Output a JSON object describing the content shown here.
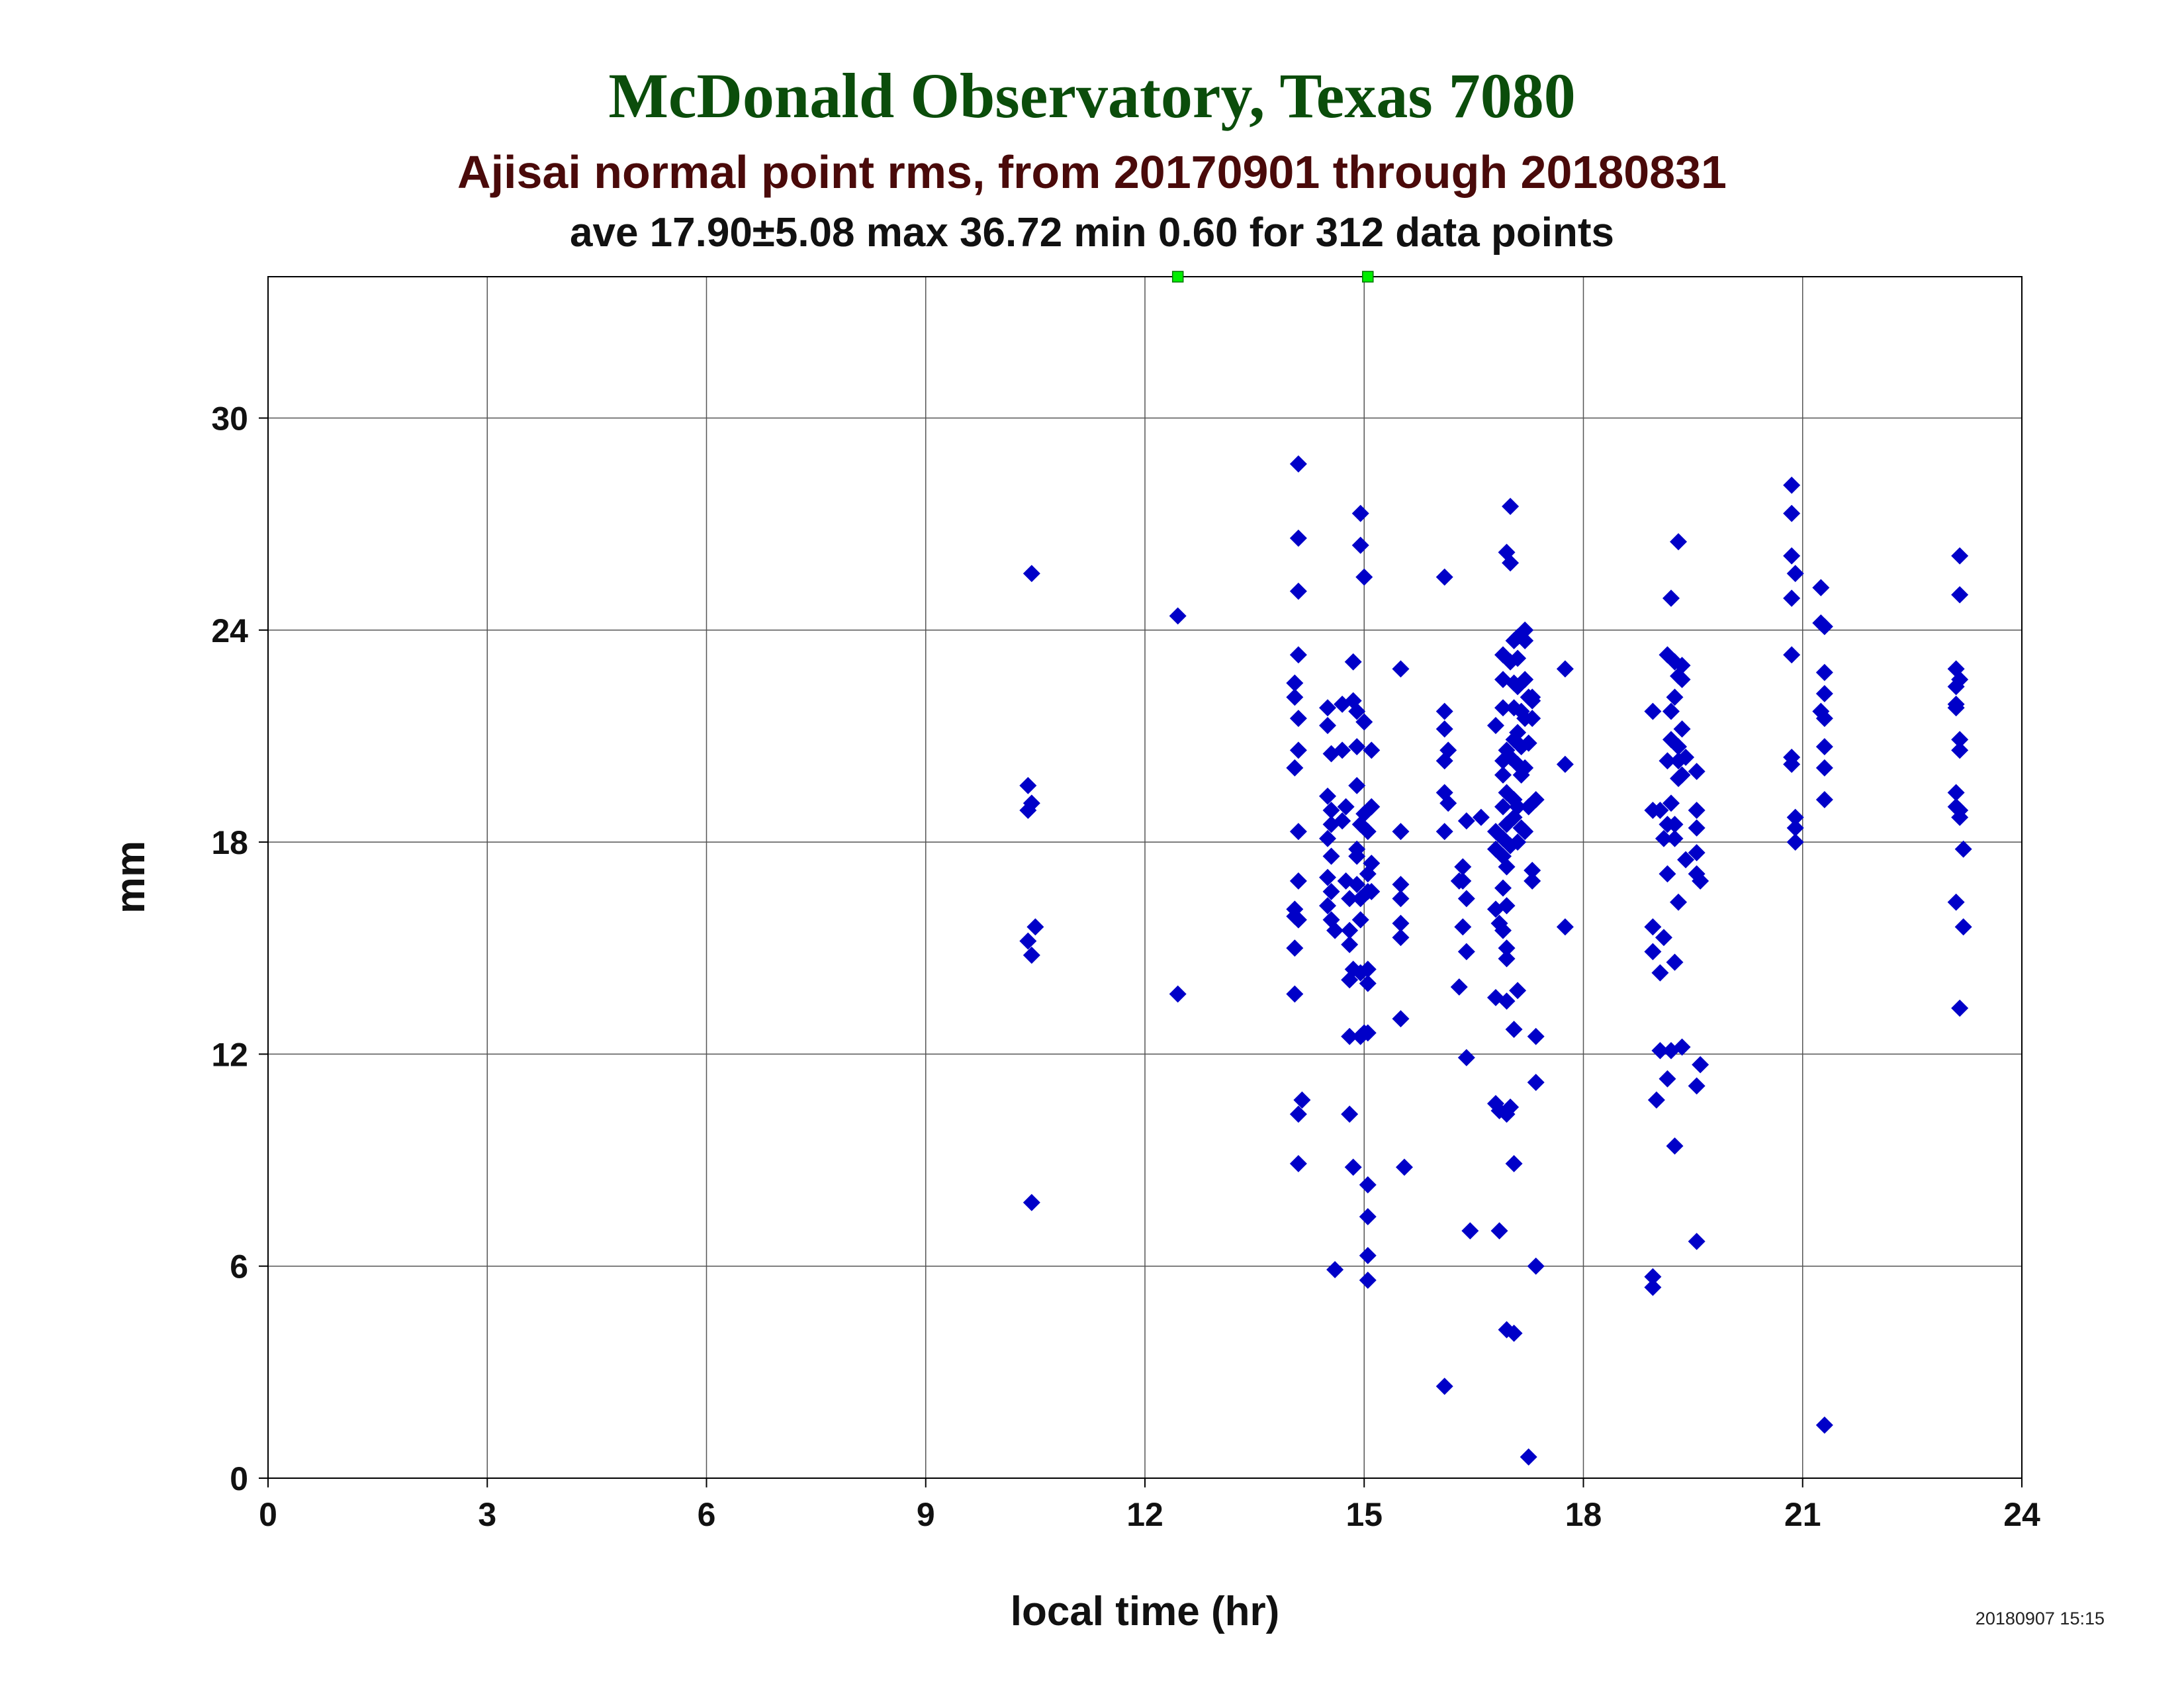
{
  "header": {
    "title": "McDonald Observatory, Texas 7080",
    "subtitle": "Ajisai normal point rms, from 20170901 through 20180831",
    "stats": "ave 17.90±5.08 max 36.72 min 0.60 for 312 data points"
  },
  "footer": {
    "timestamp": "20180907 15:15"
  },
  "colors": {
    "points": "#0000c8",
    "offscale_markers": "#00ee00",
    "grid": "#555555"
  },
  "chart_data": {
    "type": "scatter",
    "xlabel": "local time (hr)",
    "ylabel": "mm",
    "xlim": [
      0,
      24
    ],
    "ylim": [
      0,
      34
    ],
    "xticks": [
      0,
      3,
      6,
      9,
      12,
      15,
      18,
      21,
      24
    ],
    "yticks": [
      0,
      6,
      12,
      18,
      24,
      30
    ],
    "grid": true,
    "offscale_markers_x": [
      12.45,
      15.05
    ],
    "series": [
      {
        "points": [
          [
            10.4,
            19.6
          ],
          [
            10.4,
            18.9
          ],
          [
            10.45,
            19.1
          ],
          [
            10.45,
            25.6
          ],
          [
            10.5,
            15.6
          ],
          [
            10.4,
            15.2
          ],
          [
            10.45,
            14.8
          ],
          [
            10.45,
            7.8
          ],
          [
            12.45,
            24.4
          ],
          [
            12.45,
            13.7
          ],
          [
            14.1,
            28.7
          ],
          [
            14.1,
            26.6
          ],
          [
            14.1,
            25.1
          ],
          [
            14.1,
            23.3
          ],
          [
            14.05,
            22.5
          ],
          [
            14.05,
            22.1
          ],
          [
            14.1,
            21.5
          ],
          [
            14.1,
            20.6
          ],
          [
            14.05,
            20.1
          ],
          [
            14.1,
            18.3
          ],
          [
            14.1,
            16.9
          ],
          [
            14.05,
            16.1
          ],
          [
            14.1,
            15.8
          ],
          [
            14.05,
            15.9
          ],
          [
            14.05,
            15.0
          ],
          [
            14.05,
            13.7
          ],
          [
            14.15,
            10.7
          ],
          [
            14.1,
            10.3
          ],
          [
            14.1,
            8.9
          ],
          [
            14.5,
            21.8
          ],
          [
            14.5,
            21.3
          ],
          [
            14.55,
            20.5
          ],
          [
            14.5,
            19.3
          ],
          [
            14.55,
            18.9
          ],
          [
            14.55,
            18.5
          ],
          [
            14.5,
            18.1
          ],
          [
            14.55,
            17.6
          ],
          [
            14.5,
            17.0
          ],
          [
            14.55,
            16.6
          ],
          [
            14.5,
            16.2
          ],
          [
            14.55,
            15.8
          ],
          [
            14.6,
            15.5
          ],
          [
            14.6,
            5.9
          ],
          [
            14.7,
            21.9
          ],
          [
            14.7,
            20.6
          ],
          [
            14.75,
            19.0
          ],
          [
            14.7,
            18.6
          ],
          [
            14.75,
            16.9
          ],
          [
            14.8,
            16.4
          ],
          [
            14.8,
            15.5
          ],
          [
            14.8,
            15.1
          ],
          [
            14.85,
            14.4
          ],
          [
            14.8,
            14.1
          ],
          [
            14.8,
            12.5
          ],
          [
            14.8,
            10.3
          ],
          [
            14.85,
            8.8
          ],
          [
            14.85,
            23.1
          ],
          [
            14.85,
            22.0
          ],
          [
            14.9,
            20.7
          ],
          [
            14.9,
            19.6
          ],
          [
            14.9,
            17.6
          ],
          [
            14.9,
            16.8
          ],
          [
            14.95,
            16.4
          ],
          [
            14.95,
            27.3
          ],
          [
            14.95,
            26.4
          ],
          [
            14.9,
            21.7
          ],
          [
            14.95,
            18.5
          ],
          [
            14.9,
            17.8
          ],
          [
            14.95,
            15.8
          ],
          [
            14.95,
            14.3
          ],
          [
            15.0,
            12.6
          ],
          [
            14.95,
            12.5
          ],
          [
            15.0,
            25.5
          ],
          [
            15.0,
            21.4
          ],
          [
            15.0,
            18.8
          ],
          [
            15.05,
            18.3
          ],
          [
            15.05,
            17.1
          ],
          [
            15.05,
            16.6
          ],
          [
            15.05,
            14.4
          ],
          [
            15.05,
            14.0
          ],
          [
            15.05,
            12.6
          ],
          [
            15.05,
            8.3
          ],
          [
            15.05,
            7.4
          ],
          [
            15.05,
            6.3
          ],
          [
            15.05,
            5.6
          ],
          [
            15.1,
            20.6
          ],
          [
            15.1,
            19.0
          ],
          [
            15.1,
            17.4
          ],
          [
            15.1,
            16.6
          ],
          [
            15.5,
            22.9
          ],
          [
            15.5,
            18.3
          ],
          [
            15.5,
            16.8
          ],
          [
            15.5,
            16.4
          ],
          [
            15.5,
            15.7
          ],
          [
            15.5,
            15.3
          ],
          [
            15.5,
            13.0
          ],
          [
            15.55,
            8.8
          ],
          [
            16.1,
            25.5
          ],
          [
            16.1,
            21.7
          ],
          [
            16.1,
            21.2
          ],
          [
            16.15,
            20.6
          ],
          [
            16.1,
            20.3
          ],
          [
            16.1,
            19.4
          ],
          [
            16.15,
            19.1
          ],
          [
            16.1,
            18.3
          ],
          [
            16.1,
            2.6
          ],
          [
            16.3,
            16.9
          ],
          [
            16.35,
            17.3
          ],
          [
            16.35,
            16.9
          ],
          [
            16.4,
            16.4
          ],
          [
            16.35,
            15.6
          ],
          [
            16.4,
            14.9
          ],
          [
            16.3,
            13.9
          ],
          [
            16.4,
            11.9
          ],
          [
            16.45,
            7.0
          ],
          [
            16.4,
            18.6
          ],
          [
            16.6,
            18.7
          ],
          [
            16.8,
            21.3
          ],
          [
            16.8,
            18.3
          ],
          [
            16.8,
            17.8
          ],
          [
            16.8,
            16.1
          ],
          [
            16.85,
            15.7
          ],
          [
            16.8,
            13.6
          ],
          [
            16.8,
            10.6
          ],
          [
            16.85,
            10.4
          ],
          [
            16.85,
            7.0
          ],
          [
            16.9,
            23.3
          ],
          [
            16.9,
            22.6
          ],
          [
            16.9,
            21.8
          ],
          [
            16.95,
            20.6
          ],
          [
            16.9,
            20.3
          ],
          [
            16.9,
            19.9
          ],
          [
            16.95,
            19.4
          ],
          [
            16.9,
            19.0
          ],
          [
            16.95,
            18.5
          ],
          [
            16.9,
            18.1
          ],
          [
            16.9,
            17.6
          ],
          [
            16.95,
            17.3
          ],
          [
            16.9,
            16.7
          ],
          [
            16.95,
            16.2
          ],
          [
            16.9,
            15.5
          ],
          [
            16.95,
            15.0
          ],
          [
            16.95,
            14.7
          ],
          [
            16.95,
            13.5
          ],
          [
            17.0,
            10.5
          ],
          [
            16.95,
            10.3
          ],
          [
            16.95,
            4.2
          ],
          [
            17.0,
            27.5
          ],
          [
            16.95,
            26.2
          ],
          [
            17.0,
            25.9
          ],
          [
            17.05,
            23.7
          ],
          [
            17.0,
            23.1
          ],
          [
            17.05,
            22.5
          ],
          [
            17.05,
            21.8
          ],
          [
            17.05,
            20.9
          ],
          [
            17.0,
            20.4
          ],
          [
            17.05,
            19.2
          ],
          [
            17.05,
            18.7
          ],
          [
            17.0,
            17.9
          ],
          [
            17.05,
            12.7
          ],
          [
            17.05,
            8.9
          ],
          [
            17.05,
            4.1
          ],
          [
            17.1,
            23.8
          ],
          [
            17.1,
            23.2
          ],
          [
            17.1,
            22.4
          ],
          [
            17.15,
            21.7
          ],
          [
            17.1,
            21.1
          ],
          [
            17.15,
            20.7
          ],
          [
            17.1,
            20.2
          ],
          [
            17.15,
            19.9
          ],
          [
            17.1,
            19.0
          ],
          [
            17.15,
            18.4
          ],
          [
            17.1,
            18.0
          ],
          [
            17.1,
            13.8
          ],
          [
            17.2,
            24.0
          ],
          [
            17.2,
            23.7
          ],
          [
            17.2,
            22.6
          ],
          [
            17.25,
            22.1
          ],
          [
            17.2,
            21.5
          ],
          [
            17.25,
            20.8
          ],
          [
            17.2,
            20.1
          ],
          [
            17.25,
            19.0
          ],
          [
            17.2,
            18.3
          ],
          [
            17.25,
            0.6
          ],
          [
            17.3,
            22.1
          ],
          [
            17.3,
            21.5
          ],
          [
            17.35,
            19.2
          ],
          [
            17.3,
            17.2
          ],
          [
            17.3,
            16.9
          ],
          [
            17.35,
            12.5
          ],
          [
            17.35,
            11.2
          ],
          [
            17.35,
            6.0
          ],
          [
            17.3,
            22.0
          ],
          [
            17.75,
            22.9
          ],
          [
            17.75,
            20.2
          ],
          [
            17.75,
            15.6
          ],
          [
            18.95,
            21.7
          ],
          [
            18.95,
            18.9
          ],
          [
            18.95,
            15.6
          ],
          [
            18.95,
            14.9
          ],
          [
            19.0,
            10.7
          ],
          [
            18.95,
            5.7
          ],
          [
            18.95,
            5.4
          ],
          [
            19.05,
            18.9
          ],
          [
            19.05,
            14.3
          ],
          [
            19.05,
            12.1
          ],
          [
            19.1,
            18.1
          ],
          [
            19.1,
            15.3
          ],
          [
            19.15,
            23.3
          ],
          [
            19.2,
            21.7
          ],
          [
            19.2,
            20.9
          ],
          [
            19.15,
            20.3
          ],
          [
            19.2,
            19.1
          ],
          [
            19.15,
            18.5
          ],
          [
            19.15,
            17.1
          ],
          [
            19.2,
            12.1
          ],
          [
            19.15,
            11.3
          ],
          [
            19.2,
            24.9
          ],
          [
            19.25,
            23.1
          ],
          [
            19.3,
            22.7
          ],
          [
            19.25,
            22.1
          ],
          [
            19.3,
            20.7
          ],
          [
            19.3,
            20.3
          ],
          [
            19.3,
            19.8
          ],
          [
            19.25,
            18.5
          ],
          [
            19.25,
            18.1
          ],
          [
            19.3,
            16.3
          ],
          [
            19.25,
            14.6
          ],
          [
            19.25,
            9.4
          ],
          [
            19.3,
            26.5
          ],
          [
            19.35,
            23.0
          ],
          [
            19.35,
            22.6
          ],
          [
            19.35,
            21.2
          ],
          [
            19.4,
            20.4
          ],
          [
            19.35,
            19.9
          ],
          [
            19.4,
            17.5
          ],
          [
            19.35,
            12.2
          ],
          [
            19.55,
            20.0
          ],
          [
            19.55,
            18.9
          ],
          [
            19.55,
            18.4
          ],
          [
            19.55,
            17.7
          ],
          [
            19.55,
            17.1
          ],
          [
            19.6,
            16.9
          ],
          [
            19.6,
            11.7
          ],
          [
            19.55,
            11.1
          ],
          [
            19.55,
            6.7
          ],
          [
            20.85,
            28.1
          ],
          [
            20.85,
            27.3
          ],
          [
            20.85,
            26.1
          ],
          [
            20.85,
            24.9
          ],
          [
            20.9,
            25.6
          ],
          [
            20.85,
            23.3
          ],
          [
            20.85,
            20.4
          ],
          [
            20.85,
            20.2
          ],
          [
            20.9,
            18.7
          ],
          [
            20.9,
            18.4
          ],
          [
            20.9,
            18.0
          ],
          [
            21.25,
            25.2
          ],
          [
            21.25,
            24.2
          ],
          [
            21.3,
            24.1
          ],
          [
            21.3,
            22.8
          ],
          [
            21.3,
            22.2
          ],
          [
            21.25,
            21.7
          ],
          [
            21.3,
            21.5
          ],
          [
            21.3,
            20.7
          ],
          [
            21.3,
            20.1
          ],
          [
            21.3,
            19.2
          ],
          [
            21.3,
            1.5
          ],
          [
            23.1,
            22.9
          ],
          [
            23.1,
            22.4
          ],
          [
            23.15,
            22.6
          ],
          [
            23.1,
            21.9
          ],
          [
            23.1,
            21.8
          ],
          [
            23.15,
            20.9
          ],
          [
            23.15,
            20.6
          ],
          [
            23.1,
            19.4
          ],
          [
            23.1,
            19.0
          ],
          [
            23.15,
            18.9
          ],
          [
            23.15,
            18.7
          ],
          [
            23.2,
            17.8
          ],
          [
            23.1,
            16.3
          ],
          [
            23.2,
            15.6
          ],
          [
            23.15,
            13.3
          ],
          [
            23.15,
            26.1
          ],
          [
            23.15,
            25.0
          ]
        ]
      }
    ]
  }
}
